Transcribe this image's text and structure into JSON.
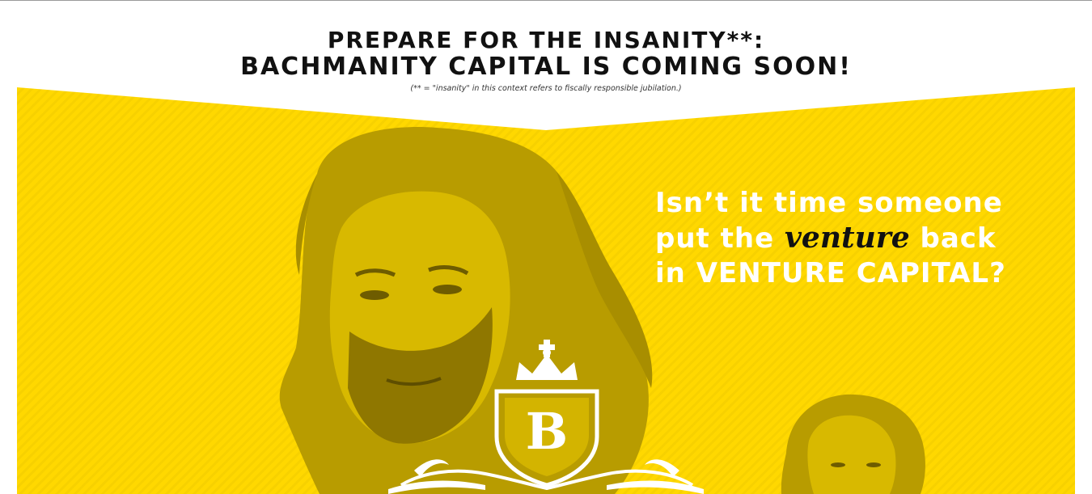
{
  "header": {
    "title_line1": "PREPARE FOR THE INSANITY**:",
    "title_line2": "BACHMANITY CAPITAL IS COMING SOON!",
    "footnote": "(** = \"insanity\" in this context refers to fiscally responsible jubilation.)"
  },
  "hero": {
    "tagline_line1": "Isn’t it time someone",
    "tagline_line2_pre": "put the",
    "tagline_line2_em": "venture",
    "tagline_line2_post": "back",
    "tagline_line3": "in VENTURE CAPITAL?",
    "logo_letter": "B"
  },
  "colors": {
    "banner_yellow": "#ffd800",
    "photo_tint": "#c9ab00",
    "photo_shadow": "#7a6500",
    "text_dark": "#111111",
    "text_light": "#ffffff"
  }
}
